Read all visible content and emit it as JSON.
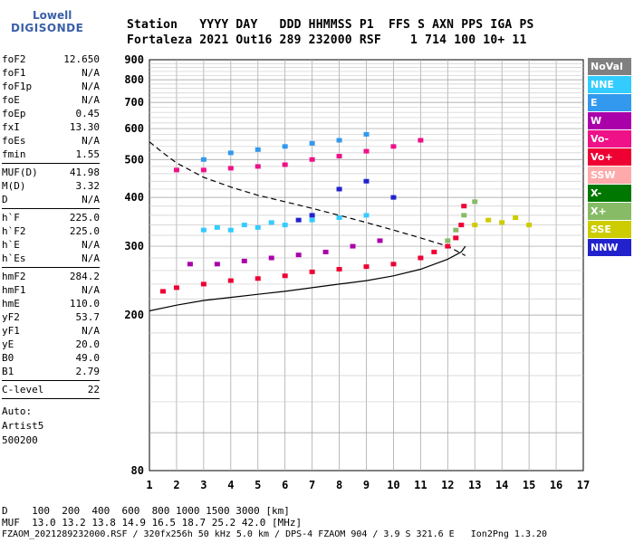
{
  "logo": {
    "line1": "Lowell",
    "line2": "DIGISONDE"
  },
  "header": {
    "line1": "Station   YYYY DAY   DDD HHMMSS P1  FFS S AXN PPS IGA PS",
    "line2": "Fortaleza 2021 Out16 289 232000 RSF    1 714 100 10+ 11"
  },
  "params": {
    "group1": [
      {
        "key": "foF2",
        "val": "12.650"
      },
      {
        "key": "foF1",
        "val": "N/A"
      },
      {
        "key": "foF1p",
        "val": "N/A"
      },
      {
        "key": "foE",
        "val": "N/A"
      },
      {
        "key": "foEp",
        "val": "0.45"
      },
      {
        "key": "fxI",
        "val": "13.30"
      },
      {
        "key": "foEs",
        "val": "N/A"
      },
      {
        "key": "fmin",
        "val": "1.55"
      }
    ],
    "group2": [
      {
        "key": "MUF(D)",
        "val": "41.98"
      },
      {
        "key": "M(D)",
        "val": "3.32"
      },
      {
        "key": "D",
        "val": "N/A"
      }
    ],
    "group3": [
      {
        "key": "h`F",
        "val": "225.0"
      },
      {
        "key": "h`F2",
        "val": "225.0"
      },
      {
        "key": "h`E",
        "val": "N/A"
      },
      {
        "key": "h`Es",
        "val": "N/A"
      }
    ],
    "group4": [
      {
        "key": "hmF2",
        "val": "284.2"
      },
      {
        "key": "hmF1",
        "val": "N/A"
      },
      {
        "key": "hmE",
        "val": "110.0"
      },
      {
        "key": "yF2",
        "val": "53.7"
      },
      {
        "key": "yF1",
        "val": "N/A"
      },
      {
        "key": "yE",
        "val": "20.0"
      },
      {
        "key": "B0",
        "val": "49.0"
      },
      {
        "key": "B1",
        "val": "2.79"
      }
    ],
    "group5": [
      {
        "key": "C-level",
        "val": "22"
      }
    ],
    "auto": [
      "Auto:",
      "Artist5",
      "500200"
    ]
  },
  "legend": [
    {
      "label": "NoVal",
      "color": "#808080"
    },
    {
      "label": "NNE",
      "color": "#33ccff"
    },
    {
      "label": "E",
      "color": "#3399ee"
    },
    {
      "label": "W",
      "color": "#aa00aa"
    },
    {
      "label": "Vo-",
      "color": "#ee1188"
    },
    {
      "label": "Vo+",
      "color": "#ee0033"
    },
    {
      "label": "SSW",
      "color": "#ffaaaa"
    },
    {
      "label": "X-",
      "color": "#007700"
    },
    {
      "label": "X+",
      "color": "#88bb66"
    },
    {
      "label": "SSE",
      "color": "#cccc00"
    },
    {
      "label": "NNW",
      "color": "#2222cc"
    }
  ],
  "footer": {
    "line1": "D    100  200  400  600  800 1000 1500 3000 [km]",
    "line2": "MUF  13.0 13.2 13.8 14.9 16.5 18.7 25.2 42.0 [MHz]",
    "line3": "FZAOM_2021289232000.RSF / 320fx256h 50 kHz 5.0 km / DPS-4 FZAOM 904 / 3.9 S 321.6 E   Ion2Png 1.3.20"
  },
  "chart_data": {
    "type": "scatter",
    "xlim": [
      1,
      17
    ],
    "ylim": [
      80,
      900
    ],
    "x_ticks": [
      "1",
      "2",
      "3",
      "4",
      "5",
      "6",
      "7",
      "8",
      "9",
      "10",
      "11",
      "12",
      "13",
      "14",
      "15",
      "16",
      "17"
    ],
    "y_ticks": [
      "80",
      "200",
      "300",
      "400",
      "500",
      "600",
      "700",
      "800",
      "900"
    ],
    "y_scale": "log",
    "grid": true,
    "series": [
      {
        "name": "Vo+",
        "color": "#ee0033",
        "x": [
          1.5,
          2.0,
          3.0,
          4.0,
          5.0,
          6.0,
          7.0,
          8.0,
          9.0,
          10.0,
          11.0,
          11.5,
          12.0,
          12.3,
          12.5,
          12.6
        ],
        "y": [
          230,
          235,
          240,
          245,
          248,
          252,
          258,
          262,
          266,
          270,
          280,
          290,
          300,
          315,
          340,
          380
        ]
      },
      {
        "name": "Vo-",
        "color": "#ee1188",
        "x": [
          2.0,
          3.0,
          4.0,
          5.0,
          6.0,
          7.0,
          8.0,
          9.0,
          10.0,
          11.0
        ],
        "y": [
          470,
          470,
          475,
          480,
          485,
          500,
          510,
          525,
          540,
          560
        ]
      },
      {
        "name": "NNE",
        "color": "#33ccff",
        "x": [
          3.0,
          3.5,
          4.0,
          4.5,
          5.0,
          5.5,
          6.0,
          7.0,
          8.0,
          9.0
        ],
        "y": [
          330,
          335,
          330,
          340,
          335,
          345,
          340,
          350,
          355,
          360
        ]
      },
      {
        "name": "E",
        "color": "#3399ee",
        "x": [
          3.0,
          4.0,
          5.0,
          6.0,
          7.0,
          8.0,
          9.0
        ],
        "y": [
          500,
          520,
          530,
          540,
          550,
          560,
          580
        ]
      },
      {
        "name": "W",
        "color": "#aa00aa",
        "x": [
          2.5,
          3.5,
          4.5,
          5.5,
          6.5,
          7.5,
          8.5,
          9.5
        ],
        "y": [
          270,
          270,
          275,
          280,
          285,
          290,
          300,
          310
        ]
      },
      {
        "name": "NNW",
        "color": "#2222cc",
        "x": [
          6.5,
          7.0,
          8.0,
          9.0,
          10.0
        ],
        "y": [
          350,
          360,
          420,
          440,
          400
        ]
      },
      {
        "name": "X+",
        "color": "#88bb66",
        "x": [
          12.0,
          12.3,
          12.6,
          13.0
        ],
        "y": [
          310,
          330,
          360,
          390
        ]
      },
      {
        "name": "SSE",
        "color": "#cccc00",
        "x": [
          13.0,
          13.5,
          14.0,
          14.5,
          15.0
        ],
        "y": [
          340,
          350,
          345,
          355,
          340
        ]
      }
    ],
    "trace_curve": {
      "x": [
        1.0,
        2.0,
        3.0,
        4.0,
        5.0,
        6.0,
        7.0,
        8.0,
        9.0,
        10.0,
        11.0,
        12.0,
        12.5,
        12.65
      ],
      "y": [
        205,
        212,
        218,
        222,
        226,
        230,
        235,
        240,
        245,
        252,
        262,
        278,
        290,
        300
      ]
    },
    "dashed_curve": {
      "x": [
        1.0,
        1.5,
        2.0,
        3.0,
        4.0,
        5.0,
        6.0,
        7.0,
        8.0,
        9.0,
        10.0,
        11.0,
        12.0,
        12.65
      ],
      "y": [
        555,
        520,
        490,
        450,
        425,
        405,
        390,
        375,
        360,
        345,
        330,
        315,
        300,
        284
      ]
    }
  }
}
